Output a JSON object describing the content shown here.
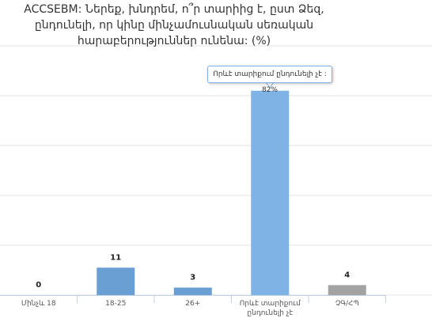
{
  "chart_data": {
    "type": "bar",
    "title": "ACCSEBM: Ներեք, խնդրեմ, ո՞ր տարիից է, ըստ Ձեզ, ընդունելի, որ կինը մինչամուսնական սեռական հարաբերություններ ունենա: (%)",
    "categories": [
      "Մինչև 18",
      "18-25",
      "26+",
      "Որևէ տարիքում ընդունելի չէ",
      "ՉԳ/ՀՊ"
    ],
    "values": [
      0,
      11,
      3,
      82,
      4
    ],
    "colors": [
      "#6a9fd4",
      "#6a9fd4",
      "#6a9fd4",
      "#7fb2e5",
      "#a3a3a3"
    ],
    "ylim": [
      0,
      100
    ],
    "yticks": [
      0,
      20,
      40,
      60,
      80,
      100
    ],
    "grid": true,
    "tooltip": "Որևէ տարիքում ընդունելի չէ : 82%"
  }
}
